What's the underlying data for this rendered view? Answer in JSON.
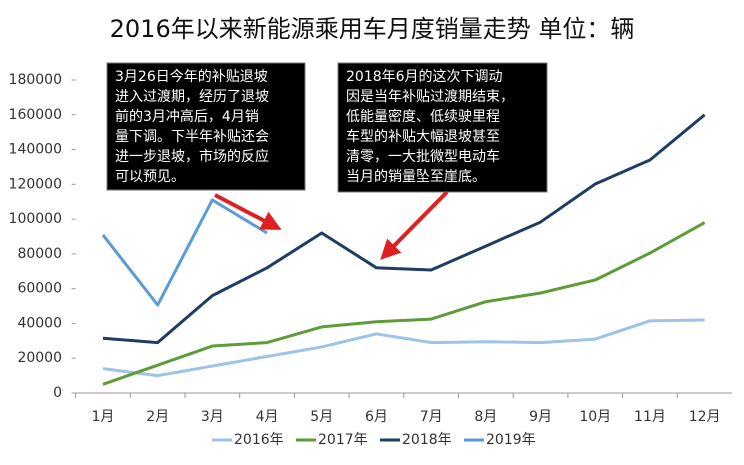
{
  "chart_data": {
    "type": "line",
    "title": "2016年以来新能源乘用车月度销量走势  单位：辆",
    "categories": [
      "1月",
      "2月",
      "3月",
      "4月",
      "5月",
      "6月",
      "7月",
      "8月",
      "9月",
      "10月",
      "11月",
      "12月"
    ],
    "series": [
      {
        "name": "2016年",
        "color": "#9dc3e6",
        "values": [
          14000,
          10000,
          15500,
          21000,
          26500,
          34000,
          29000,
          29500,
          29000,
          31000,
          41500,
          42000
        ]
      },
      {
        "name": "2017年",
        "color": "#5e9c3a",
        "values": [
          5000,
          16000,
          27000,
          29000,
          38000,
          41000,
          42500,
          52500,
          57500,
          65000,
          80500,
          98000
        ]
      },
      {
        "name": "2018年",
        "color": "#1f3d63",
        "values": [
          31500,
          29000,
          56000,
          72000,
          92000,
          72000,
          70700,
          84500,
          98300,
          120200,
          134000,
          160000
        ]
      },
      {
        "name": "2019年",
        "color": "#5b9bd5",
        "values": [
          90900,
          50600,
          111000,
          92000,
          null,
          null,
          null,
          null,
          null,
          null,
          null,
          null
        ]
      }
    ],
    "ylim": [
      0,
      180000
    ],
    "yticks": [
      0,
      20000,
      40000,
      60000,
      80000,
      100000,
      120000,
      140000,
      160000,
      180000
    ],
    "legend": "bottom",
    "annotations": [
      {
        "lines": [
          "3月26日今年的补贴退坡",
          "进入过渡期，经历了退坡",
          "前的3月冲高后，4月销",
          "量下调。下半年补贴还会",
          "进一步退坡，市场的反应",
          "可以预见。"
        ]
      },
      {
        "lines": [
          "2018年6月的这次下调动",
          "因是当年补贴过渡期结束，",
          "低能量密度、低续驶里程",
          "车型的补贴大幅退坡甚至",
          "清零，一大批微型电动车",
          "当月的销量坠至崖底。"
        ]
      }
    ]
  }
}
